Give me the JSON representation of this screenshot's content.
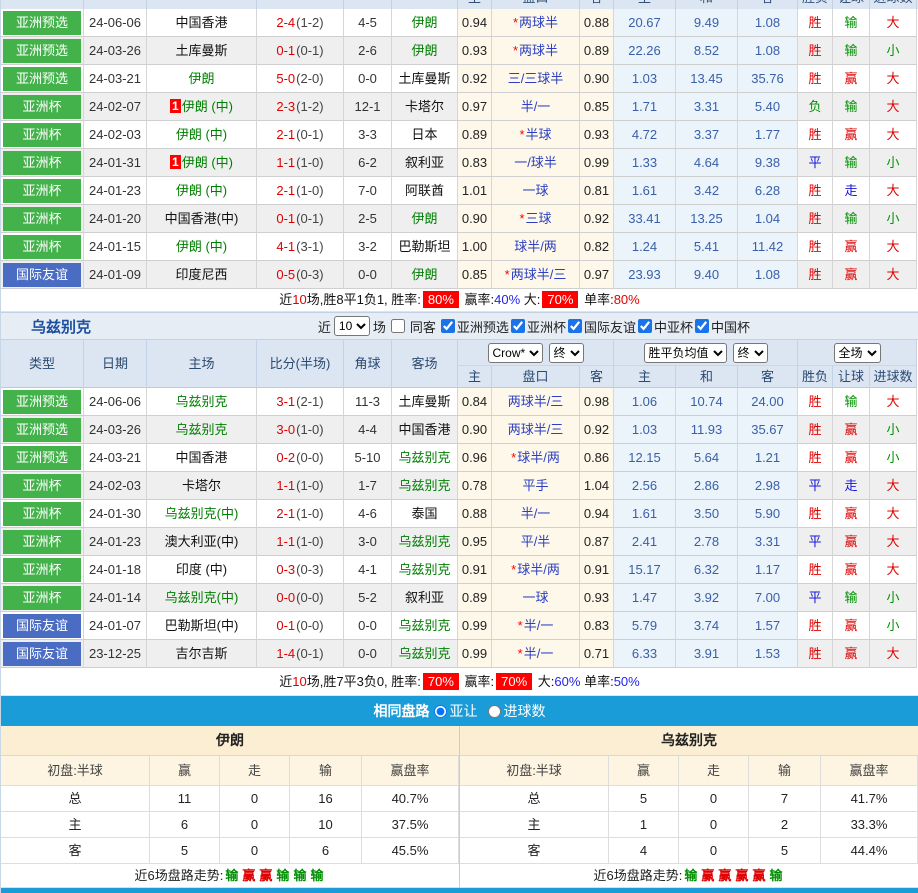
{
  "colors": {
    "green_badge": "#43b24a",
    "blue_badge": "#4a6cc3",
    "bar_blue": "#1a9cd8",
    "team_green": "#008000",
    "score_red": "#e00000",
    "pan_blue": "#2b3fc0",
    "avg_blue": "#3a5fa8",
    "win_red": "#e00000",
    "draw_blue": "#1515dd",
    "lose_green": "#008f00",
    "pct_blue": "#2222ee",
    "badge_red": "#ff0000"
  },
  "top_strip_labels": [
    "主",
    "盘口",
    "客",
    "主",
    "和",
    "客",
    "胜负",
    "让球",
    "进球数"
  ],
  "iran_table": {
    "rows": [
      {
        "type": "亚洲预选",
        "tc": "g",
        "date": "24-06-06",
        "home": "中国香港",
        "hf": false,
        "hm": false,
        "score": "2-4",
        "half": "(1-2)",
        "corner": "4-5",
        "away": "伊朗",
        "af": true,
        "o1": "0.94",
        "star": true,
        "pan": "两球半",
        "o2": "0.88",
        "a1": "20.67",
        "a2": "9.49",
        "a3": "1.08",
        "r": "胜",
        "l": "输",
        "g": "大"
      },
      {
        "type": "亚洲预选",
        "tc": "g",
        "date": "24-03-26",
        "home": "土库曼斯",
        "hf": false,
        "hm": false,
        "score": "0-1",
        "half": "(0-1)",
        "corner": "2-6",
        "away": "伊朗",
        "af": true,
        "o1": "0.93",
        "star": true,
        "pan": "两球半",
        "o2": "0.89",
        "a1": "22.26",
        "a2": "8.52",
        "a3": "1.08",
        "r": "胜",
        "l": "输",
        "g": "小"
      },
      {
        "type": "亚洲预选",
        "tc": "g",
        "date": "24-03-21",
        "home": "伊朗",
        "hf": true,
        "hm": false,
        "score": "5-0",
        "half": "(2-0)",
        "corner": "0-0",
        "away": "土库曼斯",
        "af": false,
        "o1": "0.92",
        "star": false,
        "pan": "三/三球半",
        "o2": "0.90",
        "a1": "1.03",
        "a2": "13.45",
        "a3": "35.76",
        "r": "胜",
        "l": "赢",
        "g": "大"
      },
      {
        "type": "亚洲杯",
        "tc": "g",
        "date": "24-02-07",
        "home": "伊朗 (中)",
        "hf": true,
        "hm": true,
        "score": "2-3",
        "half": "(1-2)",
        "corner": "12-1",
        "away": "卡塔尔",
        "af": false,
        "o1": "0.97",
        "star": false,
        "pan": "半/一",
        "o2": "0.85",
        "a1": "1.71",
        "a2": "3.31",
        "a3": "5.40",
        "r": "负",
        "l": "输",
        "g": "大"
      },
      {
        "type": "亚洲杯",
        "tc": "g",
        "date": "24-02-03",
        "home": "伊朗 (中)",
        "hf": true,
        "hm": false,
        "score": "2-1",
        "half": "(0-1)",
        "corner": "3-3",
        "away": "日本",
        "af": false,
        "o1": "0.89",
        "star": true,
        "pan": "半球",
        "o2": "0.93",
        "a1": "4.72",
        "a2": "3.37",
        "a3": "1.77",
        "r": "胜",
        "l": "赢",
        "g": "大"
      },
      {
        "type": "亚洲杯",
        "tc": "g",
        "date": "24-01-31",
        "home": "伊朗 (中)",
        "hf": true,
        "hm": true,
        "score": "1-1",
        "half": "(1-0)",
        "corner": "6-2",
        "away": "叙利亚",
        "af": false,
        "o1": "0.83",
        "star": false,
        "pan": "一/球半",
        "o2": "0.99",
        "a1": "1.33",
        "a2": "4.64",
        "a3": "9.38",
        "r": "平",
        "l": "输",
        "g": "小"
      },
      {
        "type": "亚洲杯",
        "tc": "g",
        "date": "24-01-23",
        "home": "伊朗 (中)",
        "hf": true,
        "hm": false,
        "score": "2-1",
        "half": "(1-0)",
        "corner": "7-0",
        "away": "阿联酋",
        "af": false,
        "o1": "1.01",
        "star": false,
        "pan": "一球",
        "o2": "0.81",
        "a1": "1.61",
        "a2": "3.42",
        "a3": "6.28",
        "r": "胜",
        "l": "走",
        "g": "大"
      },
      {
        "type": "亚洲杯",
        "tc": "g",
        "date": "24-01-20",
        "home": "中国香港(中)",
        "hf": false,
        "hm": false,
        "score": "0-1",
        "half": "(0-1)",
        "corner": "2-5",
        "away": "伊朗",
        "af": true,
        "o1": "0.90",
        "star": true,
        "pan": "三球",
        "o2": "0.92",
        "a1": "33.41",
        "a2": "13.25",
        "a3": "1.04",
        "r": "胜",
        "l": "输",
        "g": "小"
      },
      {
        "type": "亚洲杯",
        "tc": "g",
        "date": "24-01-15",
        "home": "伊朗 (中)",
        "hf": true,
        "hm": false,
        "score": "4-1",
        "half": "(3-1)",
        "corner": "3-2",
        "away": "巴勒斯坦",
        "af": false,
        "o1": "1.00",
        "star": false,
        "pan": "球半/两",
        "o2": "0.82",
        "a1": "1.24",
        "a2": "5.41",
        "a3": "11.42",
        "r": "胜",
        "l": "赢",
        "g": "大"
      },
      {
        "type": "国际友谊",
        "tc": "b",
        "date": "24-01-09",
        "home": "印度尼西",
        "hf": false,
        "hm": false,
        "score": "0-5",
        "half": "(0-3)",
        "corner": "0-0",
        "away": "伊朗",
        "af": true,
        "o1": "0.85",
        "star": true,
        "pan": "两球半/三",
        "o2": "0.97",
        "a1": "23.93",
        "a2": "9.40",
        "a3": "1.08",
        "r": "胜",
        "l": "赢",
        "g": "大"
      }
    ],
    "summary": [
      {
        "t": "近"
      },
      {
        "t": "10",
        "c": "red"
      },
      {
        "t": "场,胜8平1负1, 胜率:"
      },
      {
        "t": "80%",
        "b": true
      },
      {
        "t": " 赢率:"
      },
      {
        "t": "40%",
        "c": "blue"
      },
      {
        "t": " 大:"
      },
      {
        "t": "70%",
        "b": true
      },
      {
        "t": " 单率:"
      },
      {
        "t": "80%",
        "c": "red"
      }
    ]
  },
  "uzbek_section": {
    "team_title": "乌兹别克",
    "near_label": "近",
    "games_select": "10",
    "games_label": "场",
    "same_away_label": "同客",
    "filters": [
      {
        "label": "亚洲预选",
        "checked": true
      },
      {
        "label": "亚洲杯",
        "checked": true
      },
      {
        "label": "国际友谊",
        "checked": true
      },
      {
        "label": "中亚杯",
        "checked": true
      },
      {
        "label": "中国杯",
        "checked": true
      }
    ],
    "header": {
      "left_cols": [
        "类型",
        "日期",
        "主场",
        "比分(半场)",
        "角球",
        "客场"
      ],
      "odds_select": "Crow*",
      "odds_final": "终",
      "avg_select": "胜平负均值",
      "avg_final": "终",
      "scope_select": "全场",
      "sub_cols": [
        "主",
        "盘口",
        "客",
        "主",
        "和",
        "客",
        "胜负",
        "让球",
        "进球数"
      ]
    },
    "rows": [
      {
        "type": "亚洲预选",
        "tc": "g",
        "date": "24-06-06",
        "home": "乌兹别克",
        "hf": true,
        "hm": false,
        "score": "3-1",
        "half": "(2-1)",
        "corner": "11-3",
        "away": "土库曼斯",
        "af": false,
        "o1": "0.84",
        "star": false,
        "pan": "两球半/三",
        "o2": "0.98",
        "a1": "1.06",
        "a2": "10.74",
        "a3": "24.00",
        "r": "胜",
        "l": "输",
        "g": "大"
      },
      {
        "type": "亚洲预选",
        "tc": "g",
        "date": "24-03-26",
        "home": "乌兹别克",
        "hf": true,
        "hm": false,
        "score": "3-0",
        "half": "(1-0)",
        "corner": "4-4",
        "away": "中国香港",
        "af": false,
        "o1": "0.90",
        "star": false,
        "pan": "两球半/三",
        "o2": "0.92",
        "a1": "1.03",
        "a2": "11.93",
        "a3": "35.67",
        "r": "胜",
        "l": "赢",
        "g": "小"
      },
      {
        "type": "亚洲预选",
        "tc": "g",
        "date": "24-03-21",
        "home": "中国香港",
        "hf": false,
        "hm": false,
        "score": "0-2",
        "half": "(0-0)",
        "corner": "5-10",
        "away": "乌兹别克",
        "af": true,
        "o1": "0.96",
        "star": true,
        "pan": "球半/两",
        "o2": "0.86",
        "a1": "12.15",
        "a2": "5.64",
        "a3": "1.21",
        "r": "胜",
        "l": "赢",
        "g": "小"
      },
      {
        "type": "亚洲杯",
        "tc": "g",
        "date": "24-02-03",
        "home": "卡塔尔",
        "hf": false,
        "hm": false,
        "score": "1-1",
        "half": "(1-0)",
        "corner": "1-7",
        "away": "乌兹别克",
        "af": true,
        "o1": "0.78",
        "star": false,
        "pan": "平手",
        "o2": "1.04",
        "a1": "2.56",
        "a2": "2.86",
        "a3": "2.98",
        "r": "平",
        "l": "走",
        "g": "大"
      },
      {
        "type": "亚洲杯",
        "tc": "g",
        "date": "24-01-30",
        "home": "乌兹别克(中)",
        "hf": true,
        "hm": false,
        "score": "2-1",
        "half": "(1-0)",
        "corner": "4-6",
        "away": "泰国",
        "af": false,
        "o1": "0.88",
        "star": false,
        "pan": "半/一",
        "o2": "0.94",
        "a1": "1.61",
        "a2": "3.50",
        "a3": "5.90",
        "r": "胜",
        "l": "赢",
        "g": "大"
      },
      {
        "type": "亚洲杯",
        "tc": "g",
        "date": "24-01-23",
        "home": "澳大利亚(中)",
        "hf": false,
        "hm": false,
        "score": "1-1",
        "half": "(1-0)",
        "corner": "3-0",
        "away": "乌兹别克",
        "af": true,
        "o1": "0.95",
        "star": false,
        "pan": "平/半",
        "o2": "0.87",
        "a1": "2.41",
        "a2": "2.78",
        "a3": "3.31",
        "r": "平",
        "l": "赢",
        "g": "大"
      },
      {
        "type": "亚洲杯",
        "tc": "g",
        "date": "24-01-18",
        "home": "印度 (中)",
        "hf": false,
        "hm": false,
        "score": "0-3",
        "half": "(0-3)",
        "corner": "4-1",
        "away": "乌兹别克",
        "af": true,
        "o1": "0.91",
        "star": true,
        "pan": "球半/两",
        "o2": "0.91",
        "a1": "15.17",
        "a2": "6.32",
        "a3": "1.17",
        "r": "胜",
        "l": "赢",
        "g": "大"
      },
      {
        "type": "亚洲杯",
        "tc": "g",
        "date": "24-01-14",
        "home": "乌兹别克(中)",
        "hf": true,
        "hm": false,
        "score": "0-0",
        "half": "(0-0)",
        "corner": "5-2",
        "away": "叙利亚",
        "af": false,
        "o1": "0.89",
        "star": false,
        "pan": "一球",
        "o2": "0.93",
        "a1": "1.47",
        "a2": "3.92",
        "a3": "7.00",
        "r": "平",
        "l": "输",
        "g": "小"
      },
      {
        "type": "国际友谊",
        "tc": "b",
        "date": "24-01-07",
        "home": "巴勒斯坦(中)",
        "hf": false,
        "hm": false,
        "score": "0-1",
        "half": "(0-0)",
        "corner": "0-0",
        "away": "乌兹别克",
        "af": true,
        "o1": "0.99",
        "star": true,
        "pan": "半/一",
        "o2": "0.83",
        "a1": "5.79",
        "a2": "3.74",
        "a3": "1.57",
        "r": "胜",
        "l": "赢",
        "g": "小"
      },
      {
        "type": "国际友谊",
        "tc": "b",
        "date": "23-12-25",
        "home": "吉尔吉斯",
        "hf": false,
        "hm": false,
        "score": "1-4",
        "half": "(0-1)",
        "corner": "0-0",
        "away": "乌兹别克",
        "af": true,
        "o1": "0.99",
        "star": true,
        "pan": "半/一",
        "o2": "0.71",
        "a1": "6.33",
        "a2": "3.91",
        "a3": "1.53",
        "r": "胜",
        "l": "赢",
        "g": "大"
      }
    ],
    "summary": [
      {
        "t": "近"
      },
      {
        "t": "10",
        "c": "red"
      },
      {
        "t": "场,胜7平3负0, 胜率:"
      },
      {
        "t": "70%",
        "b": true
      },
      {
        "t": " 赢率:"
      },
      {
        "t": "70%",
        "b": true
      },
      {
        "t": " 大:"
      },
      {
        "t": "60%",
        "c": "blue"
      },
      {
        "t": " 单率:"
      },
      {
        "t": "50%",
        "c": "blue"
      }
    ]
  },
  "same_path_bar": {
    "title": "相同盘路",
    "options": [
      {
        "label": "亚让",
        "selected": true
      },
      {
        "label": "进球数",
        "selected": false
      }
    ]
  },
  "panel_tables": [
    {
      "title": "伊朗",
      "headers": [
        "初盘:半球",
        "赢",
        "走",
        "输",
        "赢盘率"
      ],
      "rows": [
        [
          "总",
          "11",
          "0",
          "16",
          "40.7%"
        ],
        [
          "主",
          "6",
          "0",
          "10",
          "37.5%"
        ],
        [
          "客",
          "5",
          "0",
          "6",
          "45.5%"
        ]
      ],
      "trend_label": "近6场盘路走势:",
      "trend": [
        "输",
        "赢",
        "赢",
        "输",
        "输",
        "输"
      ]
    },
    {
      "title": "乌兹别克",
      "headers": [
        "初盘:半球",
        "赢",
        "走",
        "输",
        "赢盘率"
      ],
      "rows": [
        [
          "总",
          "5",
          "0",
          "7",
          "41.7%"
        ],
        [
          "主",
          "1",
          "0",
          "2",
          "33.3%"
        ],
        [
          "客",
          "4",
          "0",
          "5",
          "44.4%"
        ]
      ],
      "trend_label": "近6场盘路走势:",
      "trend": [
        "输",
        "赢",
        "赢",
        "赢",
        "赢",
        "输"
      ]
    }
  ]
}
